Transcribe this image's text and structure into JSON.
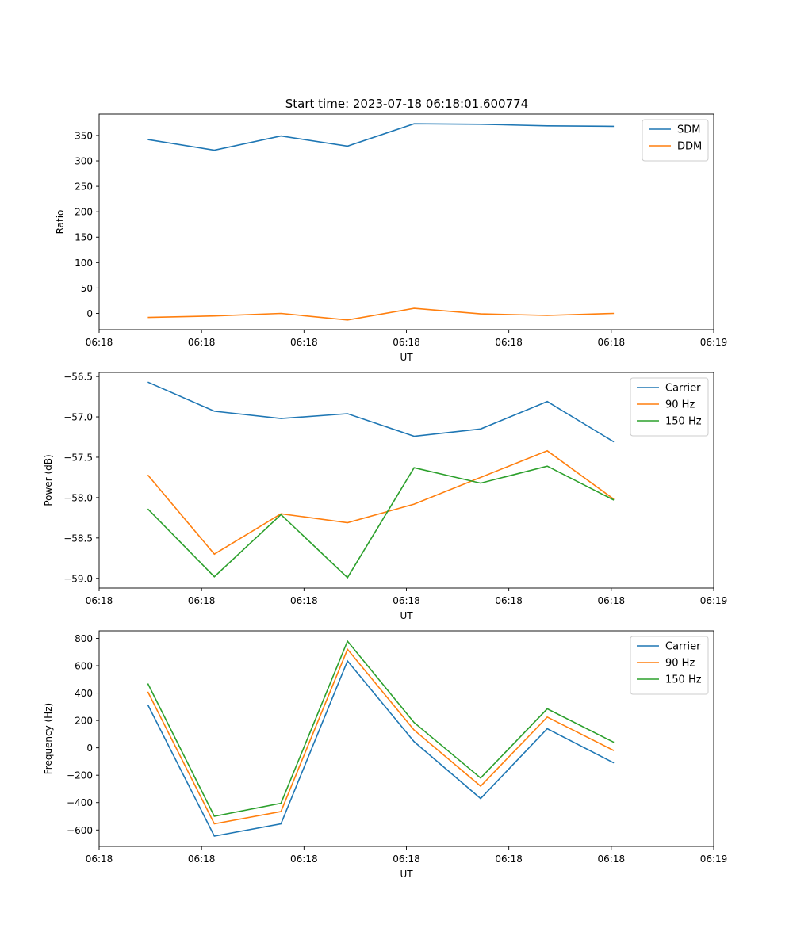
{
  "figure": {
    "title": "Start time: 2023-07-18 06:18:01.600774"
  },
  "chart_data": [
    {
      "type": "line",
      "title": "Start time: 2023-07-18 06:18:01.600774",
      "xlabel": "UT",
      "ylabel": "Ratio",
      "xlim": [
        0,
        12
      ],
      "ylim": [
        -32,
        392
      ],
      "x_ticks": [
        0,
        2,
        4,
        6,
        8,
        10,
        12
      ],
      "x_tick_labels": [
        "06:18",
        "06:18",
        "06:18",
        "06:18",
        "06:18",
        "06:18",
        "06:19"
      ],
      "y_ticks": [
        0,
        50,
        100,
        150,
        200,
        250,
        300,
        350
      ],
      "y_tick_labels": [
        "0",
        "50",
        "100",
        "150",
        "200",
        "250",
        "300",
        "350"
      ],
      "x": [
        0.95,
        2.25,
        3.55,
        4.85,
        6.15,
        7.45,
        8.75,
        10.05
      ],
      "legend": "top-right",
      "grid": false,
      "series": [
        {
          "name": "SDM",
          "color": "#1f77b4",
          "values": [
            342,
            321,
            349,
            329,
            373,
            372,
            369,
            368
          ]
        },
        {
          "name": "DDM",
          "color": "#ff7f0e",
          "values": [
            -8,
            -5,
            0,
            -13,
            10,
            -1,
            -4,
            0
          ]
        }
      ]
    },
    {
      "type": "line",
      "xlabel": "UT",
      "ylabel": "Power (dB)",
      "xlim": [
        0,
        12
      ],
      "ylim": [
        -59.12,
        -56.45
      ],
      "x_ticks": [
        0,
        2,
        4,
        6,
        8,
        10,
        12
      ],
      "x_tick_labels": [
        "06:18",
        "06:18",
        "06:18",
        "06:18",
        "06:18",
        "06:18",
        "06:19"
      ],
      "y_ticks": [
        -59.0,
        -58.5,
        -58.0,
        -57.5,
        -57.0,
        -56.5
      ],
      "y_tick_labels": [
        "−59.0",
        "−58.5",
        "−58.0",
        "−57.5",
        "−57.0",
        "−56.5"
      ],
      "x": [
        0.95,
        2.25,
        3.55,
        4.85,
        6.15,
        7.45,
        8.75,
        10.05
      ],
      "legend": "top-right",
      "grid": false,
      "series": [
        {
          "name": "Carrier",
          "color": "#1f77b4",
          "values": [
            -56.57,
            -56.93,
            -57.02,
            -56.96,
            -57.24,
            -57.15,
            -56.81,
            -57.31
          ]
        },
        {
          "name": "90 Hz",
          "color": "#ff7f0e",
          "values": [
            -57.72,
            -58.7,
            -58.2,
            -58.31,
            -58.08,
            -57.75,
            -57.42,
            -58.02
          ]
        },
        {
          "name": "150 Hz",
          "color": "#2ca02c",
          "values": [
            -58.14,
            -58.98,
            -58.21,
            -58.99,
            -57.63,
            -57.82,
            -57.61,
            -58.03
          ]
        }
      ]
    },
    {
      "type": "line",
      "xlabel": "UT",
      "ylabel": "Frequency (Hz)",
      "xlim": [
        0,
        12
      ],
      "ylim": [
        -720,
        855
      ],
      "x_ticks": [
        0,
        2,
        4,
        6,
        8,
        10,
        12
      ],
      "x_tick_labels": [
        "06:18",
        "06:18",
        "06:18",
        "06:18",
        "06:18",
        "06:18",
        "06:19"
      ],
      "y_ticks": [
        -600,
        -400,
        -200,
        0,
        200,
        400,
        600,
        800
      ],
      "y_tick_labels": [
        "−600",
        "−400",
        "−200",
        "0",
        "200",
        "400",
        "600",
        "800"
      ],
      "x": [
        0.95,
        2.25,
        3.55,
        4.85,
        6.15,
        7.45,
        8.75,
        10.05
      ],
      "legend": "top-right",
      "grid": false,
      "series": [
        {
          "name": "Carrier",
          "color": "#1f77b4",
          "values": [
            315,
            -645,
            -555,
            635,
            45,
            -370,
            140,
            -110
          ]
        },
        {
          "name": "90 Hz",
          "color": "#ff7f0e",
          "values": [
            410,
            -555,
            -465,
            720,
            130,
            -280,
            225,
            -20
          ]
        },
        {
          "name": "150 Hz",
          "color": "#2ca02c",
          "values": [
            470,
            -500,
            -405,
            780,
            185,
            -220,
            285,
            40
          ]
        }
      ]
    }
  ]
}
